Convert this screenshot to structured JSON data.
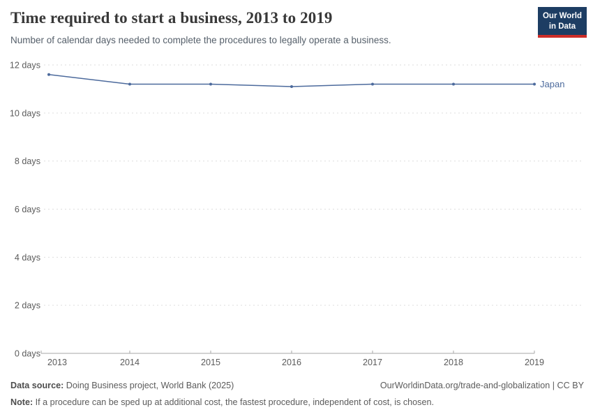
{
  "header": {
    "title": "Time required to start a business, 2013 to 2019",
    "subtitle": "Number of calendar days needed to complete the procedures to legally operate a business."
  },
  "logo": {
    "line1": "Our World",
    "line2": "in Data",
    "bg_color": "#1d3d63",
    "bar_color": "#cd2d28"
  },
  "chart_data": {
    "type": "line",
    "title": "Time required to start a business, 2013 to 2019",
    "xlabel": "",
    "ylabel": "days",
    "x": [
      2013,
      2014,
      2015,
      2016,
      2017,
      2018,
      2019
    ],
    "x_tick_labels": [
      "2013",
      "2014",
      "2015",
      "2016",
      "2017",
      "2018",
      "2019"
    ],
    "series": [
      {
        "name": "Japan",
        "color": "#4c6a9c",
        "values": [
          11.6,
          11.2,
          11.2,
          11.1,
          11.2,
          11.2,
          11.2
        ]
      }
    ],
    "ylim": [
      0,
      12
    ],
    "y_ticks": [
      0,
      2,
      4,
      6,
      8,
      10,
      12
    ],
    "y_tick_suffix": " days",
    "grid": "horizontal-dashed",
    "gridline_color": "#dddddd",
    "axis_color": "#a7a7a7",
    "legend_position": "end-of-line"
  },
  "footer": {
    "datasource_label": "Data source:",
    "datasource_text": " Doing Business project, World Bank (2025)",
    "rights": "OurWorldinData.org/trade-and-globalization | CC BY",
    "note_label": "Note:",
    "note_text": " If a procedure can be sped up at additional cost, the fastest procedure, independent of cost, is chosen."
  }
}
